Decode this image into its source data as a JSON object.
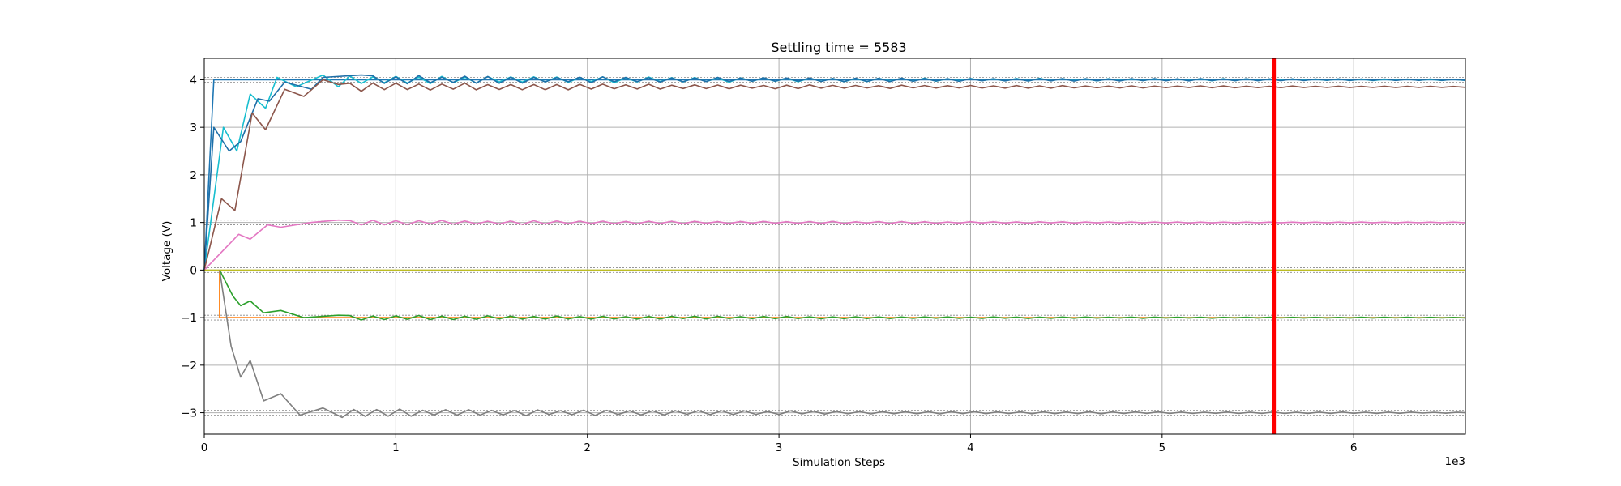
{
  "chart_data": {
    "type": "line",
    "title": "Settling time = 5583",
    "xlabel": "Simulation Steps",
    "ylabel": "Voltage (V)",
    "x_offset_label": "1e3",
    "xlim": [
      0,
      6583
    ],
    "ylim": [
      -3.45,
      4.45
    ],
    "x_ticks": [
      0,
      1000,
      2000,
      3000,
      4000,
      5000,
      6000
    ],
    "x_tick_labels": [
      "0",
      "1",
      "2",
      "3",
      "4",
      "5",
      "6"
    ],
    "y_ticks": [
      -3,
      -2,
      -1,
      0,
      1,
      2,
      3,
      4
    ],
    "y_tick_labels": [
      "−3",
      "−2",
      "−1",
      "0",
      "1",
      "2",
      "3",
      "4"
    ],
    "grid": true,
    "settling_time": 5583,
    "settling_marker_color": "#ff0000",
    "targets": [
      4,
      1,
      0,
      -1,
      -3
    ],
    "tolerance": 0.05,
    "series": [
      {
        "color": "#1f77b4",
        "final": 4.0,
        "kind": "step"
      },
      {
        "color": "#17becf",
        "final": 4.0,
        "kind": "underdamped",
        "peaks": [
          [
            100,
            3.0
          ],
          [
            170,
            2.5
          ],
          [
            240,
            3.7
          ],
          [
            320,
            3.4
          ],
          [
            380,
            4.05
          ],
          [
            480,
            3.85
          ],
          [
            620,
            4.1
          ],
          [
            700,
            3.85
          ]
        ]
      },
      {
        "color": "#1f6fa8",
        "final": 4.0,
        "kind": "underdamped",
        "peaks": [
          [
            50,
            3.0
          ],
          [
            130,
            2.5
          ],
          [
            190,
            2.7
          ],
          [
            280,
            3.6
          ],
          [
            340,
            3.55
          ],
          [
            420,
            3.95
          ],
          [
            560,
            3.8
          ],
          [
            620,
            4.05
          ],
          [
            820,
            4.1
          ]
        ]
      },
      {
        "color": "#8c564b",
        "final": 3.85,
        "kind": "underdamped",
        "peaks": [
          [
            90,
            1.5
          ],
          [
            160,
            1.25
          ],
          [
            250,
            3.3
          ],
          [
            320,
            2.95
          ],
          [
            420,
            3.8
          ],
          [
            520,
            3.65
          ],
          [
            620,
            4.0
          ],
          [
            700,
            3.9
          ]
        ]
      },
      {
        "color": "#e377c2",
        "final": 1.0,
        "kind": "underdamped",
        "peaks": [
          [
            180,
            0.75
          ],
          [
            240,
            0.65
          ],
          [
            330,
            0.95
          ],
          [
            400,
            0.9
          ],
          [
            560,
            1.0
          ],
          [
            700,
            1.05
          ]
        ]
      },
      {
        "color": "#bcbd22",
        "final": 0.0,
        "kind": "flat"
      },
      {
        "color": "#ff7f0e",
        "final": -1.0,
        "kind": "flat-late"
      },
      {
        "color": "#2ca02c",
        "final": -1.0,
        "kind": "underdamped",
        "peaks": [
          [
            150,
            -0.55
          ],
          [
            190,
            -0.75
          ],
          [
            240,
            -0.65
          ],
          [
            310,
            -0.9
          ],
          [
            400,
            -0.85
          ],
          [
            520,
            -1.0
          ],
          [
            700,
            -0.95
          ]
        ]
      },
      {
        "color": "#7f7f7f",
        "final": -3.0,
        "kind": "underdamped",
        "peaks": [
          [
            140,
            -1.6
          ],
          [
            190,
            -2.25
          ],
          [
            240,
            -1.9
          ],
          [
            310,
            -2.75
          ],
          [
            400,
            -2.6
          ],
          [
            500,
            -3.05
          ],
          [
            620,
            -2.9
          ],
          [
            720,
            -3.1
          ]
        ]
      }
    ]
  }
}
